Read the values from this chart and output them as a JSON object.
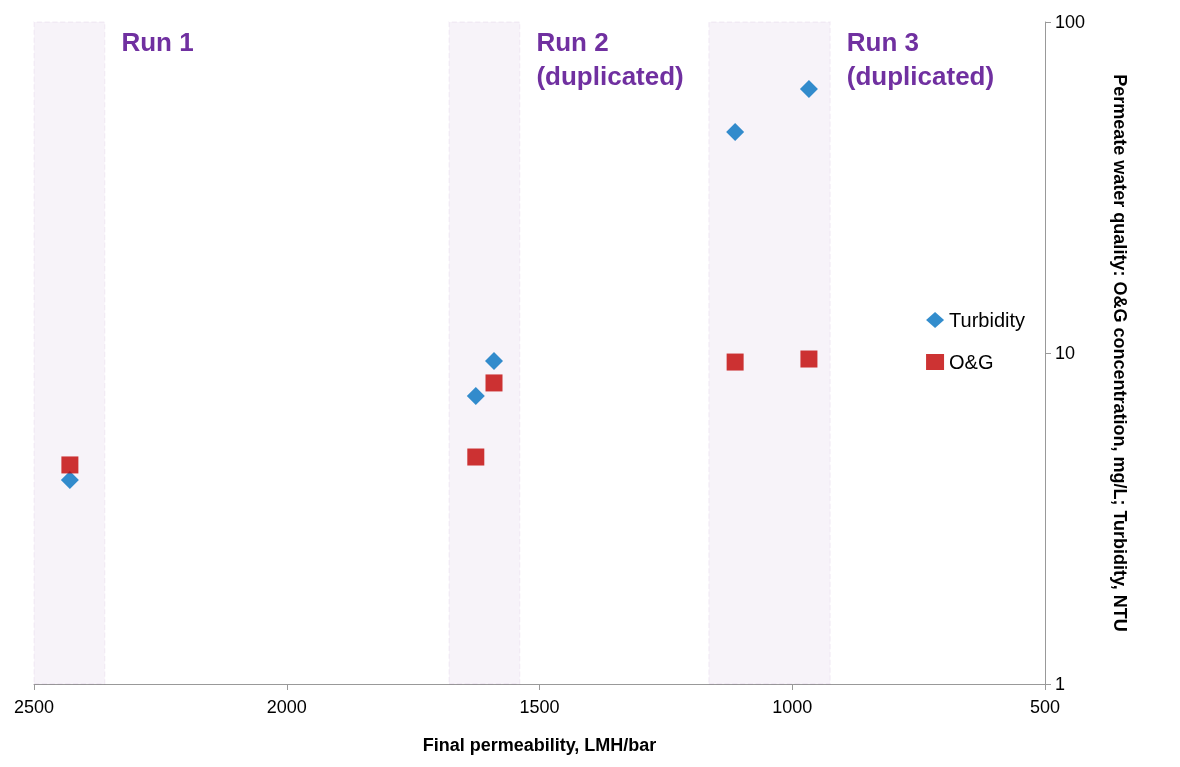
{
  "chart_data": {
    "type": "scatter",
    "xlabel": "Final permeability, LMH/bar",
    "ylabel": "Permeate water quality: O&G concentration, mg/L; Turbidity, NTU",
    "xlim": [
      2500,
      500
    ],
    "xticks": [
      2500,
      2000,
      1500,
      1000,
      500
    ],
    "ylim": [
      1,
      100
    ],
    "yticks": [
      1,
      10,
      100
    ],
    "log": "y",
    "grid": false,
    "legend": "right",
    "series": [
      {
        "name": "Turbidity",
        "color": "#0070c0",
        "marker": "diamond",
        "x": [
          2429,
          1626,
          1590,
          1113,
          967
        ],
        "values": [
          4.13,
          7.41,
          9.46,
          46.5,
          62.8
        ]
      },
      {
        "name": "O&G",
        "color": "#c00000",
        "marker": "square",
        "x": [
          2429,
          1626,
          1590,
          1113,
          967
        ],
        "values": [
          4.59,
          4.85,
          8.12,
          9.39,
          9.59
        ]
      }
    ],
    "bands": [
      {
        "axis": "x",
        "from": 2500,
        "to": 2360,
        "label": "Run 1",
        "color": "#7030a0"
      },
      {
        "axis": "x",
        "from": 1679,
        "to": 1539,
        "label": "Run 2\n(duplicated)",
        "color": "#7030a0"
      },
      {
        "axis": "x",
        "from": 1165,
        "to": 925,
        "label": "Run 3\n(duplicated)",
        "color": "#7030a0"
      }
    ]
  }
}
